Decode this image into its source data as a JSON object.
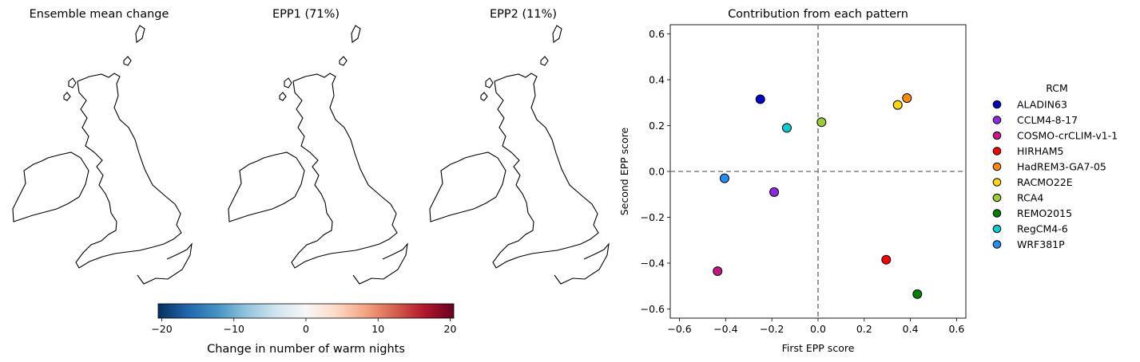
{
  "maps": [
    {
      "title": "Ensemble mean change",
      "scheme": "mean"
    },
    {
      "title": "EPP1 (71%)",
      "scheme": "epp1"
    },
    {
      "title": "EPP2 (11%)",
      "scheme": "epp2"
    }
  ],
  "colorbar": {
    "label": "Change in number of warm nights",
    "ticks": [
      -20,
      -10,
      0,
      10,
      20
    ],
    "range": [
      -20.5,
      20.5
    ],
    "colormap": "RdBu_r",
    "stops": [
      "#053061",
      "#2166ac",
      "#4393c3",
      "#92c5de",
      "#d1e5f0",
      "#f7f7f7",
      "#fddbc7",
      "#f4a582",
      "#d6604d",
      "#b2182b",
      "#67001f"
    ]
  },
  "chart_data": {
    "type": "scatter",
    "title": "Contribution from each pattern",
    "xlabel": "First EPP score",
    "ylabel": "Second EPP score",
    "xlim": [
      -0.64,
      0.64
    ],
    "ylim": [
      -0.64,
      0.64
    ],
    "xticks": [
      -0.6,
      -0.4,
      -0.2,
      0.0,
      0.2,
      0.4,
      0.6
    ],
    "yticks": [
      -0.6,
      -0.4,
      -0.2,
      0.0,
      0.2,
      0.4,
      0.6
    ],
    "reference_lines": {
      "x": 0,
      "y": 0,
      "style": "dashed",
      "color": "#808080"
    },
    "grid": false,
    "legend_title": "RCM",
    "legend_position": "outside right",
    "series": [
      {
        "name": "ALADIN63",
        "color": "#0000cd",
        "x": -0.25,
        "y": 0.315
      },
      {
        "name": "CCLM4-8-17",
        "color": "#8a2be2",
        "x": -0.19,
        "y": -0.09
      },
      {
        "name": "COSMO-crCLIM-v1-1",
        "color": "#c71585",
        "x": -0.435,
        "y": -0.435
      },
      {
        "name": "HIRHAM5",
        "color": "#ff0000",
        "x": 0.295,
        "y": -0.385
      },
      {
        "name": "HadREM3-GA7-05",
        "color": "#ff8c00",
        "x": 0.385,
        "y": 0.32
      },
      {
        "name": "RACMO22E",
        "color": "#ffd700",
        "x": 0.345,
        "y": 0.29
      },
      {
        "name": "RCA4",
        "color": "#9acd32",
        "x": 0.015,
        "y": 0.215
      },
      {
        "name": "REMO2015",
        "color": "#008000",
        "x": 0.43,
        "y": -0.535
      },
      {
        "name": "RegCM4-6",
        "color": "#00ced1",
        "x": -0.135,
        "y": 0.19
      },
      {
        "name": "WRF381P",
        "color": "#1e90ff",
        "x": -0.405,
        "y": -0.03
      }
    ]
  }
}
